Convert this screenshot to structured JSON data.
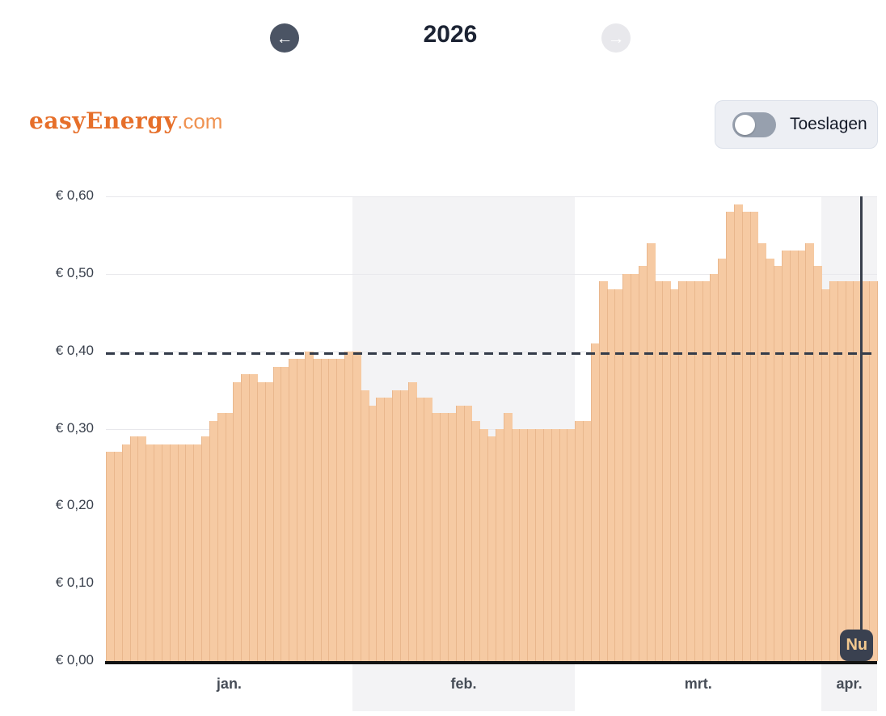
{
  "header": {
    "year": "2026"
  },
  "brand": {
    "name": "easyEnergy",
    "tld": ".com"
  },
  "toggle": {
    "label": "Toeslagen",
    "state": "off"
  },
  "colors": {
    "accent_orange": "#e66f2a",
    "bar_fill": "#f6caa3",
    "bar_edge": "#e9b78d",
    "dark_navy": "#333b49",
    "band_gray": "#f3f3f5",
    "grid_gray": "#e8e8ec",
    "badge_bg": "#3a4150",
    "badge_text": "#f3c98f"
  },
  "chart_data": {
    "type": "bar",
    "title": "2026",
    "xlabel": "",
    "ylabel": "",
    "ylim": [
      0,
      0.6
    ],
    "grid": "horizontal",
    "y_ticks": [
      {
        "label": "€ 0,60",
        "value": 0.6
      },
      {
        "label": "€ 0,50",
        "value": 0.5
      },
      {
        "label": "€ 0,40",
        "value": 0.4
      },
      {
        "label": "€ 0,30",
        "value": 0.3
      },
      {
        "label": "€ 0,20",
        "value": 0.2
      },
      {
        "label": "€ 0,10",
        "value": 0.1
      },
      {
        "label": "€ 0,00",
        "value": 0.0
      }
    ],
    "reference_line": {
      "value": 0.4,
      "style": "dashed"
    },
    "now_marker": {
      "label": "Nu",
      "month": "apr.",
      "day": 5
    },
    "months": [
      {
        "label": "jan.",
        "shaded": false,
        "values": [
          0.27,
          0.27,
          0.28,
          0.29,
          0.29,
          0.28,
          0.28,
          0.28,
          0.28,
          0.28,
          0.28,
          0.28,
          0.29,
          0.31,
          0.32,
          0.32,
          0.36,
          0.37,
          0.37,
          0.36,
          0.36,
          0.38,
          0.38,
          0.39,
          0.39,
          0.4,
          0.39,
          0.39,
          0.39,
          0.39,
          0.4
        ]
      },
      {
        "label": "feb.",
        "shaded": true,
        "values": [
          0.4,
          0.35,
          0.33,
          0.34,
          0.34,
          0.35,
          0.35,
          0.36,
          0.34,
          0.34,
          0.32,
          0.32,
          0.32,
          0.33,
          0.33,
          0.31,
          0.3,
          0.29,
          0.3,
          0.32,
          0.3,
          0.3,
          0.3,
          0.3,
          0.3,
          0.3,
          0.3,
          0.3
        ]
      },
      {
        "label": "mrt.",
        "shaded": false,
        "values": [
          0.31,
          0.31,
          0.41,
          0.49,
          0.48,
          0.48,
          0.5,
          0.5,
          0.51,
          0.54,
          0.49,
          0.49,
          0.48,
          0.49,
          0.49,
          0.49,
          0.49,
          0.5,
          0.52,
          0.58,
          0.59,
          0.58,
          0.58,
          0.54,
          0.52,
          0.51,
          0.53,
          0.53,
          0.53,
          0.54,
          0.51
        ]
      },
      {
        "label": "apr.",
        "shaded": true,
        "values": [
          0.48,
          0.49,
          0.49,
          0.49,
          0.49,
          0.49,
          0.49
        ]
      }
    ]
  }
}
